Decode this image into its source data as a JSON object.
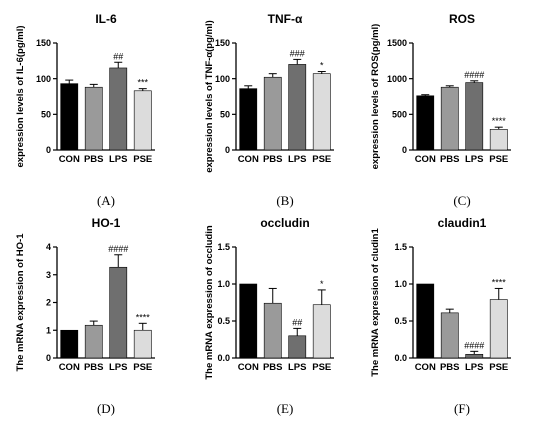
{
  "colors": {
    "CON": "#000000",
    "PBS": "#9a9a9a",
    "LPS": "#6f6f6f",
    "PSE": "#dcdcdc",
    "axis": "#000000"
  },
  "chart_data": [
    {
      "type": "bar",
      "title": "IL-6",
      "ylabel": "expression levels of IL-6(pg/ml)",
      "categories": [
        "CON",
        "PBS",
        "LPS",
        "PSE"
      ],
      "values": [
        93,
        88,
        115,
        83
      ],
      "errors": [
        5,
        4,
        8,
        3
      ],
      "significance": [
        "",
        "",
        "##",
        "***"
      ],
      "ylim": [
        0,
        150
      ],
      "yticks": [
        0,
        50,
        100,
        150
      ],
      "panel_label": "(A)"
    },
    {
      "type": "bar",
      "title": "TNF-α",
      "ylabel": "expression levels of TNF-α(pg/ml)",
      "categories": [
        "CON",
        "PBS",
        "LPS",
        "PSE"
      ],
      "values": [
        86,
        102,
        120,
        107
      ],
      "errors": [
        4,
        5,
        7,
        3
      ],
      "significance": [
        "",
        "",
        "###",
        "*"
      ],
      "ylim": [
        0,
        150
      ],
      "yticks": [
        0,
        50,
        100,
        150
      ],
      "panel_label": "(B)"
    },
    {
      "type": "bar",
      "title": "ROS",
      "ylabel": "expression levels of ROS(pg/ml)",
      "categories": [
        "CON",
        "PBS",
        "LPS",
        "PSE"
      ],
      "values": [
        760,
        880,
        945,
        290
      ],
      "errors": [
        15,
        20,
        25,
        30
      ],
      "significance": [
        "",
        "",
        "####",
        "****"
      ],
      "ylim": [
        0,
        1500
      ],
      "yticks": [
        0,
        500,
        1000,
        1500
      ],
      "panel_label": "(C)"
    },
    {
      "type": "bar",
      "title": "HO-1",
      "ylabel": "The mRNA expression of HO-1",
      "categories": [
        "CON",
        "PBS",
        "LPS",
        "PSE"
      ],
      "values": [
        1.0,
        1.18,
        3.27,
        1.0
      ],
      "errors": [
        0,
        0.15,
        0.45,
        0.25
      ],
      "significance": [
        "",
        "",
        "####",
        "****"
      ],
      "ylim": [
        0,
        4
      ],
      "yticks": [
        0,
        1,
        2,
        3,
        4
      ],
      "panel_label": "(D)"
    },
    {
      "type": "bar",
      "title": "occludin",
      "ylabel": "The mRNA expression of occludin",
      "categories": [
        "CON",
        "PBS",
        "LPS",
        "PSE"
      ],
      "values": [
        1.0,
        0.74,
        0.3,
        0.72
      ],
      "errors": [
        0,
        0.2,
        0.1,
        0.2
      ],
      "significance": [
        "",
        "",
        "##",
        "*"
      ],
      "ylim": [
        0,
        1.5
      ],
      "yticks": [
        0.0,
        0.5,
        1.0,
        1.5
      ],
      "panel_label": "(E)"
    },
    {
      "type": "bar",
      "title": "claudin1",
      "ylabel": "The mRNA expression of cludin1",
      "categories": [
        "CON",
        "PBS",
        "LPS",
        "PSE"
      ],
      "values": [
        1.0,
        0.61,
        0.05,
        0.79
      ],
      "errors": [
        0,
        0.05,
        0.04,
        0.15
      ],
      "significance": [
        "",
        "",
        "####",
        "****"
      ],
      "ylim": [
        0,
        1.5
      ],
      "yticks": [
        0.0,
        0.5,
        1.0,
        1.5
      ],
      "panel_label": "(F)"
    }
  ]
}
